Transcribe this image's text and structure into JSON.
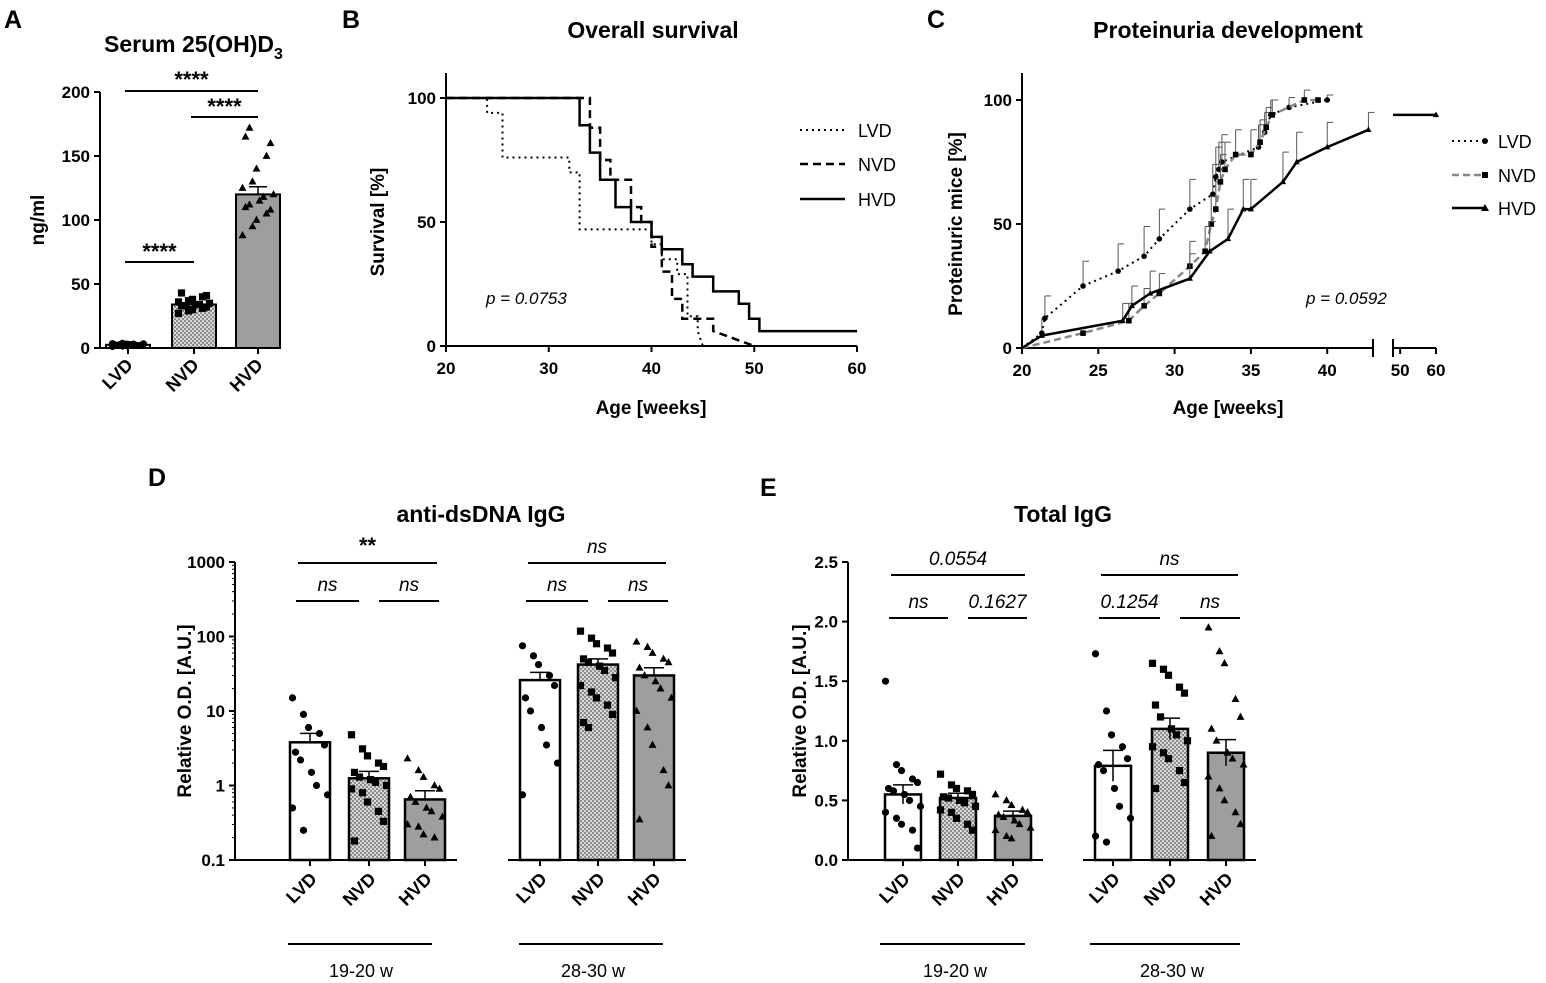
{
  "figure": {
    "colors": {
      "ink": "#000000",
      "bar_hvd": "#9e9e9e",
      "bar_lvd": "#ffffff",
      "checker_a": "#d9d9d9",
      "checker_b": "#8c8c8c",
      "nvd_line": "#888888"
    }
  },
  "chart_data": [
    {
      "id": "A",
      "panel_label": "A",
      "type": "bar",
      "title_main": "Serum 25(OH)D",
      "title_sub": "3",
      "ylabel": "ng/ml",
      "ylim": [
        0,
        200
      ],
      "yticks": [
        0,
        50,
        100,
        150,
        200
      ],
      "categories": [
        "LVD",
        "NVD",
        "HVD"
      ],
      "values": [
        2.5,
        34,
        120
      ],
      "sem": [
        0.4,
        1.5,
        6
      ],
      "points": [
        [
          1.2,
          1.5,
          1.8,
          2.0,
          2.2,
          2.4,
          2.6,
          2.8,
          3.0,
          3.2,
          3.4,
          3.6,
          3.0,
          2.0
        ],
        [
          27,
          29,
          30,
          31,
          32,
          33,
          33,
          34,
          34,
          35,
          36,
          37,
          38,
          40,
          41,
          43
        ],
        [
          88,
          95,
          100,
          105,
          108,
          110,
          112,
          115,
          118,
          120,
          125,
          130,
          140,
          150,
          160,
          165,
          172
        ]
      ],
      "significance": [
        {
          "from": "LVD",
          "to": "NVD",
          "label": "****"
        },
        {
          "from": "NVD",
          "to": "HVD",
          "label": "****"
        },
        {
          "from": "LVD",
          "to": "HVD",
          "label": "****"
        }
      ]
    },
    {
      "id": "B",
      "panel_label": "B",
      "type": "line",
      "title": "Overall survival",
      "xlabel": "Age [weeks]",
      "ylabel": "Survival [%]",
      "xlim": [
        20,
        60
      ],
      "ylim": [
        0,
        100
      ],
      "xticks": [
        20,
        30,
        40,
        50,
        60
      ],
      "yticks": [
        0,
        50,
        100
      ],
      "annotation": "p = 0.0753",
      "series": [
        {
          "name": "LVD",
          "style": "dotted",
          "x": [
            20,
            24,
            24,
            25.5,
            25.5,
            32,
            32,
            33,
            33,
            40,
            40,
            41,
            41,
            42.5,
            42.5,
            43.5,
            43.5,
            44.5,
            44.5,
            45
          ],
          "y": [
            100,
            100,
            94,
            94,
            76,
            76,
            70,
            70,
            47,
            47,
            41,
            41,
            35,
            35,
            29,
            29,
            12,
            12,
            6,
            0
          ]
        },
        {
          "name": "NVD",
          "style": "dashed",
          "x": [
            20,
            34,
            34,
            35,
            35,
            36,
            36,
            38,
            38,
            39,
            39,
            40,
            40,
            41,
            41,
            42,
            42,
            43,
            43,
            46,
            46,
            50
          ],
          "y": [
            100,
            100,
            88,
            88,
            75,
            75,
            67,
            67,
            56,
            56,
            50,
            50,
            40,
            40,
            30,
            30,
            19,
            19,
            11,
            11,
            6,
            0
          ]
        },
        {
          "name": "HVD",
          "style": "solid",
          "x": [
            20,
            33,
            33,
            34,
            34,
            35,
            35,
            36.5,
            36.5,
            38,
            38,
            40,
            40,
            41,
            41,
            43,
            43,
            44,
            44,
            46,
            46,
            48.5,
            48.5,
            49.5,
            49.5,
            50.5,
            50.5,
            51,
            51,
            60
          ],
          "y": [
            100,
            100,
            89,
            89,
            78,
            78,
            67,
            67,
            56,
            56,
            50,
            50,
            44,
            44,
            39,
            39,
            33,
            33,
            28,
            28,
            22,
            22,
            17,
            17,
            11,
            11,
            6,
            6,
            6,
            6
          ]
        }
      ]
    },
    {
      "id": "C",
      "panel_label": "C",
      "type": "line",
      "title": "Proteinuria development",
      "xlabel": "Age [weeks]",
      "ylabel": "Proteinuric mice [%]",
      "xlim": [
        20,
        43
      ],
      "xlim_break": [
        48,
        60
      ],
      "ylim": [
        0,
        100
      ],
      "xticks": [
        20,
        25,
        30,
        35,
        40
      ],
      "xticks_break": [
        50,
        60
      ],
      "yticks": [
        0,
        50,
        100
      ],
      "annotation": "p = 0.0592",
      "series": [
        {
          "name": "LVD",
          "style": "dotted",
          "marker": "circle",
          "x": [
            20,
            21.3,
            21.5,
            24,
            26.3,
            28,
            29,
            31,
            32.5,
            32.7,
            32.9,
            33.1,
            35.5,
            35.9,
            36.3,
            37.5,
            40
          ],
          "y": [
            0,
            6,
            12,
            25,
            31,
            37,
            44,
            56,
            62,
            69,
            72,
            75,
            81,
            87,
            94,
            97,
            100
          ],
          "err": [
            0,
            6,
            9,
            10,
            11,
            12,
            12,
            12,
            12,
            12,
            11,
            11,
            9,
            8,
            6,
            4,
            2
          ]
        },
        {
          "name": "NVD",
          "style": "dashed",
          "marker": "square",
          "x": [
            20,
            24,
            27,
            28,
            29,
            31,
            32,
            32.4,
            32.7,
            33,
            33.3,
            34,
            35,
            35.6,
            36,
            36.4,
            38.5,
            39.4
          ],
          "y": [
            0,
            6,
            11,
            17,
            22,
            33,
            39,
            50,
            56,
            67,
            72,
            78,
            78,
            83,
            89,
            94,
            100,
            100
          ],
          "err": [
            0,
            0,
            7,
            7,
            8,
            10,
            10,
            11,
            11,
            11,
            11,
            10,
            10,
            9,
            8,
            6,
            4,
            0
          ]
        },
        {
          "name": "HVD",
          "style": "solid",
          "marker": "triangle",
          "x": [
            20,
            21.3,
            26.6,
            27.2,
            28.4,
            31,
            32.3,
            33.5,
            34.5,
            35,
            37.1,
            38,
            40,
            42.7,
            60
          ],
          "y": [
            0,
            5,
            11,
            17,
            22,
            28,
            39,
            44,
            56,
            56,
            67,
            75,
            81,
            88,
            94
          ],
          "err": [
            0,
            0,
            7,
            8,
            9,
            10,
            12,
            12,
            12,
            12,
            12,
            12,
            10,
            7,
            0
          ]
        }
      ]
    },
    {
      "id": "D",
      "panel_label": "D",
      "type": "bar",
      "title": "anti-dsDNA IgG",
      "ylabel": "Relative O.D. [A.U.]",
      "yscale": "log",
      "ylim": [
        0.1,
        1000
      ],
      "yticks": [
        0.1,
        1,
        10,
        100,
        1000
      ],
      "ytick_labels": [
        "0.1",
        "1",
        "10",
        "100",
        "1000"
      ],
      "groups": [
        "19-20 w",
        "28-30 w"
      ],
      "categories": [
        "LVD",
        "NVD",
        "HVD",
        "LVD",
        "NVD",
        "HVD"
      ],
      "values": [
        3.8,
        1.25,
        0.65,
        26,
        42,
        30
      ],
      "err_up": [
        5.0,
        1.55,
        0.85,
        33,
        50,
        38
      ],
      "points": [
        [
          15,
          9,
          6,
          5,
          3.5,
          2.8,
          2.2,
          1.5,
          1.0,
          0.75,
          0.5,
          0.25
        ],
        [
          4.8,
          3.1,
          2.5,
          2.0,
          1.8,
          1.5,
          1.3,
          1.2,
          1.1,
          1.0,
          0.9,
          0.8,
          0.6,
          0.45,
          0.33,
          0.18
        ],
        [
          2.3,
          1.6,
          1.3,
          1.0,
          0.9,
          0.7,
          0.6,
          0.5,
          0.45,
          0.38,
          0.3,
          0.28,
          0.22,
          0.2
        ],
        [
          75,
          55,
          42,
          30,
          22,
          15,
          10,
          6,
          3.5,
          2.0,
          0.75
        ],
        [
          118,
          95,
          80,
          70,
          60,
          50,
          45,
          40,
          35,
          28,
          22,
          18,
          15,
          12,
          9,
          7,
          6
        ],
        [
          85,
          72,
          60,
          50,
          45,
          38,
          30,
          25,
          20,
          15,
          10,
          6,
          3.5,
          1.6,
          1.0,
          0.35
        ]
      ],
      "significance": [
        {
          "group": 0,
          "from": 0,
          "to": 1,
          "label": "ns",
          "italic": true
        },
        {
          "group": 0,
          "from": 1,
          "to": 2,
          "label": "ns",
          "italic": true
        },
        {
          "group": 0,
          "from": 0,
          "to": 2,
          "label": "**",
          "italic": false
        },
        {
          "group": 1,
          "from": 0,
          "to": 1,
          "label": "ns",
          "italic": true
        },
        {
          "group": 1,
          "from": 1,
          "to": 2,
          "label": "ns",
          "italic": true
        },
        {
          "group": 1,
          "from": 0,
          "to": 2,
          "label": "ns",
          "italic": true
        }
      ]
    },
    {
      "id": "E",
      "panel_label": "E",
      "type": "bar",
      "title": "Total IgG",
      "ylabel": "Relative O.D. [A.U.]",
      "ylim": [
        0,
        2.5
      ],
      "yticks": [
        0,
        0.5,
        1.0,
        1.5,
        2.0,
        2.5
      ],
      "ytick_labels": [
        "0.0",
        "0.5",
        "1.0",
        "1.5",
        "2.0",
        "2.5"
      ],
      "groups": [
        "19-20 w",
        "28-30 w"
      ],
      "categories": [
        "LVD",
        "NVD",
        "HVD",
        "LVD",
        "NVD",
        "HVD"
      ],
      "values": [
        0.55,
        0.52,
        0.37,
        0.79,
        1.1,
        0.9
      ],
      "sem": [
        0.08,
        0.04,
        0.04,
        0.13,
        0.09,
        0.11
      ],
      "points": [
        [
          1.5,
          0.8,
          0.75,
          0.68,
          0.65,
          0.6,
          0.58,
          0.55,
          0.5,
          0.45,
          0.4,
          0.35,
          0.3,
          0.25,
          0.1
        ],
        [
          0.72,
          0.63,
          0.6,
          0.58,
          0.55,
          0.53,
          0.52,
          0.5,
          0.48,
          0.45,
          0.42,
          0.4,
          0.35,
          0.3,
          0.25
        ],
        [
          0.55,
          0.5,
          0.46,
          0.42,
          0.4,
          0.38,
          0.36,
          0.33,
          0.3,
          0.27,
          0.25,
          0.2,
          0.18
        ],
        [
          1.73,
          1.25,
          1.05,
          0.95,
          0.85,
          0.8,
          0.75,
          0.6,
          0.45,
          0.35,
          0.2,
          0.15
        ],
        [
          1.65,
          1.6,
          1.55,
          1.45,
          1.4,
          1.3,
          1.2,
          1.1,
          1.05,
          1.0,
          0.95,
          0.9,
          0.85,
          0.75,
          0.65,
          0.6
        ],
        [
          1.95,
          1.75,
          1.65,
          1.35,
          1.2,
          1.1,
          1.0,
          0.9,
          0.85,
          0.8,
          0.7,
          0.6,
          0.5,
          0.4,
          0.3,
          0.2
        ]
      ],
      "significance": [
        {
          "group": 0,
          "from": 0,
          "to": 1,
          "label": "ns",
          "italic": true
        },
        {
          "group": 0,
          "from": 1,
          "to": 2,
          "label": "0.1627",
          "italic": true
        },
        {
          "group": 0,
          "from": 0,
          "to": 2,
          "label": "0.0554",
          "italic": true
        },
        {
          "group": 1,
          "from": 0,
          "to": 1,
          "label": "0.1254",
          "italic": true
        },
        {
          "group": 1,
          "from": 1,
          "to": 2,
          "label": "ns",
          "italic": true
        },
        {
          "group": 1,
          "from": 0,
          "to": 2,
          "label": "ns",
          "italic": true
        }
      ]
    }
  ]
}
